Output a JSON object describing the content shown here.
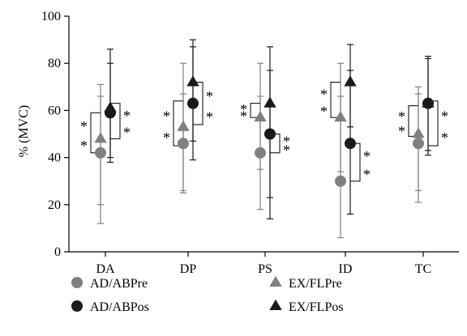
{
  "chart_data": {
    "type": "scatter",
    "ylabel": "% (MVC)",
    "ylim": [
      0,
      100
    ],
    "yticks": [
      0,
      20,
      40,
      60,
      80,
      100
    ],
    "categories": [
      "DA",
      "DP",
      "PS",
      "ID",
      "TC"
    ],
    "series": [
      {
        "name": "AD/ABPre",
        "marker": "circle",
        "color": "#808080",
        "values": [
          42,
          46,
          42,
          30,
          46
        ],
        "upper": [
          66,
          67,
          66,
          66,
          70
        ],
        "lower": [
          12,
          26,
          18,
          6,
          21
        ]
      },
      {
        "name": "AD/ABPos",
        "marker": "circle",
        "color": "#1a1a1a",
        "values": [
          59,
          63,
          50,
          46,
          63
        ],
        "upper": [
          80,
          87,
          77,
          77,
          83
        ],
        "lower": [
          38,
          39,
          23,
          16,
          43
        ]
      },
      {
        "name": "EX/FLPre",
        "marker": "triangle",
        "color": "#808080",
        "values": [
          48,
          53,
          57,
          57,
          50
        ],
        "upper": [
          71,
          80,
          80,
          80,
          67
        ],
        "lower": [
          20,
          25,
          35,
          34,
          26
        ]
      },
      {
        "name": "EX/FLPos",
        "marker": "triangle",
        "color": "#1a1a1a",
        "values": [
          61,
          72,
          63,
          72,
          63
        ],
        "upper": [
          86,
          90,
          87,
          88,
          82
        ],
        "lower": [
          40,
          47,
          14,
          53,
          41
        ]
      }
    ],
    "significance_brackets": [
      {
        "category": "DA",
        "side": "left",
        "from": 42,
        "to": 59,
        "marks": [
          "*",
          "*"
        ]
      },
      {
        "category": "DA",
        "side": "right",
        "from": 48,
        "to": 63,
        "marks": [
          "*",
          "*"
        ]
      },
      {
        "category": "DP",
        "side": "left",
        "from": 45,
        "to": 64,
        "marks": [
          "*",
          "*"
        ]
      },
      {
        "category": "DP",
        "side": "right",
        "from": 54,
        "to": 72,
        "marks": [
          "*",
          "*"
        ]
      },
      {
        "category": "PS",
        "side": "left",
        "from": 57,
        "to": 63,
        "marks": [
          "*",
          "*"
        ]
      },
      {
        "category": "PS",
        "side": "right",
        "from": 42,
        "to": 50,
        "marks": [
          "*",
          "*"
        ]
      },
      {
        "category": "ID",
        "side": "left",
        "from": 57,
        "to": 72,
        "marks": [
          "*",
          "*"
        ]
      },
      {
        "category": "ID",
        "side": "right",
        "from": 30,
        "to": 46,
        "marks": [
          "*",
          "*"
        ]
      },
      {
        "category": "TC",
        "side": "left",
        "from": 49,
        "to": 62,
        "marks": [
          "*",
          "*"
        ]
      },
      {
        "category": "TC",
        "side": "right",
        "from": 45,
        "to": 64,
        "marks": [
          "*",
          "*"
        ]
      }
    ],
    "legend": {
      "placement": "bottom",
      "entries": [
        "AD/ABPre",
        "EX/FLPre",
        "AD/ABPos",
        "EX/FLPos"
      ]
    },
    "grid": false
  }
}
